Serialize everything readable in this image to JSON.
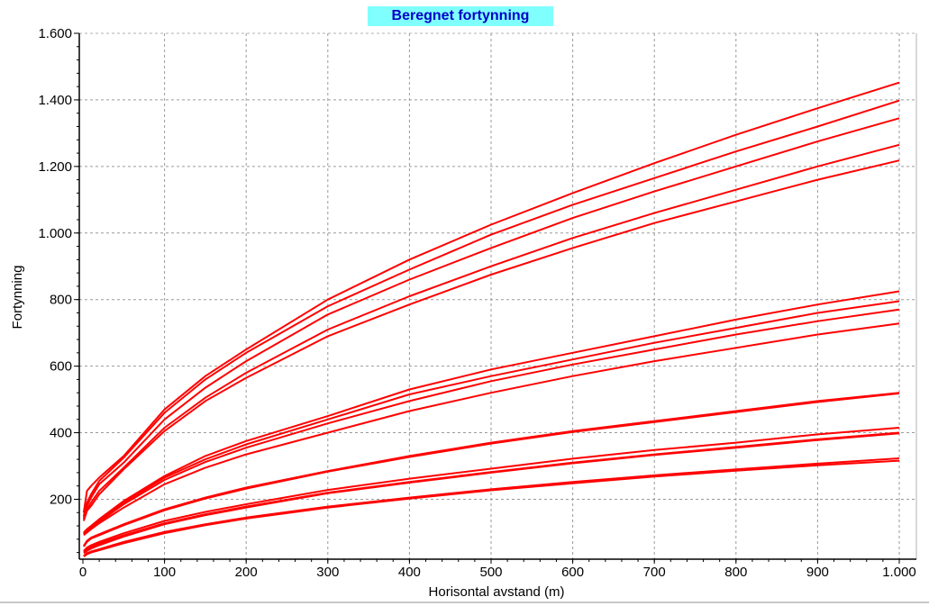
{
  "chart_data": {
    "type": "line",
    "title": "Beregnet fortynning",
    "xlabel": "Horisontal avstand (m)",
    "ylabel": "Fortynning",
    "xlim": [
      0,
      1000
    ],
    "ylim": [
      20,
      1600
    ],
    "x_ticks": [
      0,
      100,
      200,
      300,
      400,
      500,
      600,
      700,
      800,
      900,
      1000
    ],
    "x_tick_labels": [
      "0",
      "100",
      "200",
      "300",
      "400",
      "500",
      "600",
      "700",
      "800",
      "900",
      "1.000"
    ],
    "y_ticks": [
      200,
      400,
      600,
      800,
      1000,
      1200,
      1400,
      1600
    ],
    "y_tick_labels": [
      "200",
      "400",
      "600",
      "800",
      "1.000",
      "1.200",
      "1.400",
      "1.600"
    ],
    "grid": true,
    "line_color": "#ff0000",
    "x": [
      1,
      5,
      10,
      20,
      50,
      100,
      150,
      200,
      300,
      400,
      500,
      600,
      700,
      800,
      900,
      1000
    ],
    "series": [
      {
        "values": [
          160,
          225,
          240,
          265,
          330,
          470,
          570,
          650,
          800,
          920,
          1025,
          1120,
          1210,
          1295,
          1375,
          1452
        ]
      },
      {
        "values": [
          150,
          190,
          215,
          255,
          325,
          460,
          560,
          640,
          780,
          890,
          995,
          1085,
          1165,
          1245,
          1320,
          1398
        ]
      },
      {
        "values": [
          145,
          180,
          205,
          245,
          310,
          440,
          535,
          615,
          755,
          860,
          955,
          1045,
          1125,
          1200,
          1275,
          1345
        ]
      },
      {
        "values": [
          140,
          170,
          190,
          225,
          295,
          415,
          505,
          580,
          710,
          810,
          900,
          985,
          1060,
          1130,
          1200,
          1265
        ]
      },
      {
        "values": [
          135,
          165,
          180,
          215,
          290,
          405,
          495,
          565,
          690,
          785,
          875,
          955,
          1030,
          1095,
          1160,
          1218
        ]
      },
      {
        "values": [
          100,
          110,
          120,
          140,
          195,
          270,
          330,
          375,
          450,
          530,
          590,
          640,
          690,
          740,
          785,
          825
        ]
      },
      {
        "values": [
          98,
          108,
          118,
          135,
          190,
          265,
          320,
          365,
          440,
          515,
          570,
          620,
          670,
          715,
          760,
          795
        ]
      },
      {
        "values": [
          95,
          105,
          115,
          132,
          185,
          258,
          312,
          355,
          428,
          495,
          555,
          605,
          650,
          695,
          735,
          770
        ]
      },
      {
        "values": [
          92,
          100,
          110,
          128,
          175,
          245,
          295,
          335,
          400,
          465,
          520,
          570,
          615,
          655,
          695,
          728
        ]
      },
      {
        "values": [
          60,
          75,
          85,
          95,
          125,
          170,
          205,
          235,
          285,
          330,
          370,
          405,
          435,
          465,
          495,
          520
        ]
      },
      {
        "values": [
          58,
          72,
          82,
          92,
          122,
          167,
          202,
          232,
          283,
          327,
          367,
          402,
          432,
          462,
          492,
          518
        ]
      },
      {
        "values": [
          45,
          55,
          62,
          72,
          98,
          135,
          162,
          185,
          228,
          262,
          292,
          322,
          348,
          370,
          395,
          415
        ]
      },
      {
        "values": [
          42,
          50,
          57,
          67,
          92,
          128,
          155,
          178,
          220,
          252,
          282,
          310,
          335,
          357,
          380,
          400
        ]
      },
      {
        "values": [
          38,
          45,
          52,
          62,
          88,
          125,
          152,
          175,
          218,
          250,
          280,
          308,
          333,
          355,
          378,
          398
        ]
      },
      {
        "values": [
          30,
          38,
          43,
          50,
          72,
          102,
          125,
          145,
          178,
          205,
          230,
          252,
          272,
          290,
          307,
          323
        ]
      },
      {
        "values": [
          28,
          35,
          40,
          47,
          68,
          98,
          122,
          142,
          175,
          202,
          227,
          248,
          268,
          286,
          302,
          316
        ]
      }
    ]
  }
}
